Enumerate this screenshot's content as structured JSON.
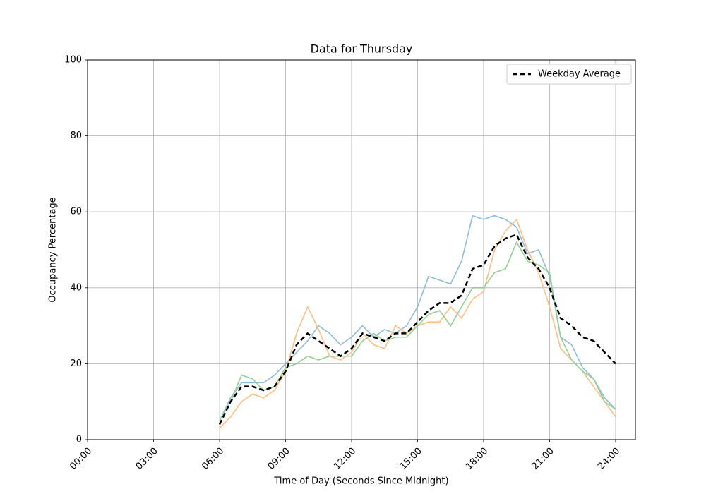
{
  "chart_data": {
    "type": "line",
    "title": "Data for Thursday",
    "x_label": "Time of Day (Seconds Since Midnight)",
    "y_label": "Occupancy Percentage",
    "x": [
      21600,
      23400,
      25200,
      27000,
      28800,
      30600,
      32400,
      34200,
      36000,
      37800,
      39600,
      41400,
      43200,
      45000,
      46800,
      48600,
      50400,
      52200,
      54000,
      55800,
      57600,
      59400,
      61200,
      63000,
      64800,
      66600,
      68400,
      70200,
      72000,
      73800,
      75600,
      77400,
      79200,
      81000,
      82800,
      84600,
      86400
    ],
    "series": [
      {
        "color": "#8fbbd9",
        "values": [
          5,
          11,
          15,
          15,
          15,
          17,
          20,
          23,
          26,
          30,
          28,
          25,
          27,
          30,
          27,
          29,
          28,
          30,
          35,
          43,
          42,
          41,
          47,
          59,
          58,
          59,
          58,
          56,
          49,
          50,
          43,
          27,
          25,
          19,
          16,
          11,
          8
        ]
      },
      {
        "color": "#ffbf86",
        "values": [
          3,
          6,
          10,
          12,
          11,
          13,
          18,
          28,
          35,
          29,
          22,
          21,
          23,
          28,
          25,
          24,
          30,
          28,
          30,
          31,
          31,
          35,
          32,
          37,
          39,
          50,
          55,
          58,
          50,
          44,
          35,
          24,
          21,
          18,
          14,
          10,
          6
        ]
      },
      {
        "color": "#95cf95",
        "values": [
          5,
          10,
          17,
          16,
          13,
          14,
          19,
          20,
          22,
          21,
          22,
          22,
          22,
          26,
          28,
          26,
          27,
          27,
          30,
          33,
          34,
          30,
          35,
          40,
          40,
          44,
          45,
          52,
          47,
          46,
          44,
          27,
          21,
          18,
          16,
          10,
          8
        ]
      },
      {
        "name": "Weekday Average",
        "color": "#000000",
        "linestyle": "dashed",
        "values": [
          4,
          10,
          14,
          14,
          13,
          14,
          18,
          25,
          28,
          26,
          24,
          22,
          24,
          28,
          27,
          26,
          28,
          28,
          31,
          34,
          36,
          36,
          38,
          45,
          46,
          51,
          53,
          54,
          48,
          45,
          40,
          32,
          30,
          27,
          26,
          23,
          20
        ]
      }
    ],
    "xlim": [
      0,
      89640
    ],
    "xticks": [
      {
        "value": 0,
        "label": "00:00"
      },
      {
        "value": 10800,
        "label": "03:00"
      },
      {
        "value": 21600,
        "label": "06:00"
      },
      {
        "value": 32400,
        "label": "09:00"
      },
      {
        "value": 43200,
        "label": "12:00"
      },
      {
        "value": 54000,
        "label": "15:00"
      },
      {
        "value": 64800,
        "label": "18:00"
      },
      {
        "value": 75600,
        "label": "21:00"
      },
      {
        "value": 86400,
        "label": "24:00"
      }
    ],
    "ylim": [
      0,
      100
    ],
    "yticks": [
      0,
      20,
      40,
      60,
      80,
      100
    ],
    "grid": true,
    "legend_position": "upper right"
  }
}
